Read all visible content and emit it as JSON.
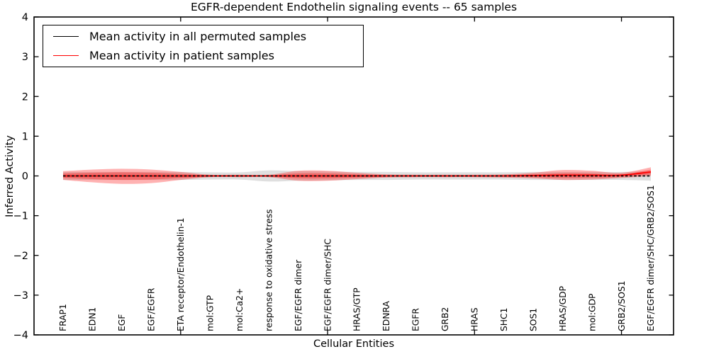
{
  "title": "EGFR-dependent Endothelin signaling events -- 65 samples",
  "chart_data": {
    "type": "area",
    "title": "EGFR-dependent Endothelin signaling events -- 65 samples",
    "xlabel": "Cellular Entities",
    "ylabel": "Inferred Activity",
    "ylim": [
      -4,
      4
    ],
    "grid": false,
    "legend_position": "upper left",
    "yticks": {
      "values": [
        4,
        3,
        2,
        1,
        0,
        -1,
        -2,
        -3,
        -4
      ],
      "labels": [
        "4",
        "3",
        "2",
        "1",
        "0",
        "−1",
        "−2",
        "−3",
        "−4"
      ]
    },
    "xtick_positions": [
      5,
      10,
      15,
      20
    ],
    "categories": [
      "FRAP1",
      "EDN1",
      "EGF",
      "EGF/EGFR",
      "ETA receptor/Endothelin-1",
      "mol:GTP",
      "mol:Ca2+",
      "response to oxidative stress",
      "EGF/EGFR dimer",
      "EGF/EGFR dimer/SHC",
      "HRAS/GTP",
      "EDNRA",
      "EGFR",
      "GRB2",
      "HRAS",
      "SHC1",
      "SOS1",
      "HRAS/GDP",
      "mol:GDP",
      "GRB2/SOS1",
      "EGF/EGFR dimer/SHC/GRB2/SOS1"
    ],
    "legend": [
      {
        "label": "Mean activity in all permuted samples",
        "color": "#000000"
      },
      {
        "label": "Mean activity in patient samples",
        "color": "#ff0000"
      }
    ],
    "series": [
      {
        "name": "Mean activity in all permuted samples",
        "color": "#000000",
        "dash": "3.5,2.6",
        "values": [
          0,
          0,
          0,
          0,
          0,
          0,
          0,
          0,
          0,
          0,
          0,
          0,
          0,
          0,
          0,
          0,
          0,
          0,
          0,
          0,
          0
        ]
      },
      {
        "name": "Mean activity in patient samples",
        "color": "#ff0000",
        "dash": "",
        "values": [
          0,
          0,
          0,
          0,
          0,
          0,
          0,
          0,
          0,
          0,
          0,
          0,
          0,
          0,
          0,
          0,
          0.01,
          0.02,
          0.02,
          0.02,
          0.1
        ]
      }
    ],
    "bands": [
      {
        "name": "permuted-envelope",
        "color": "#808080",
        "opacity": 0.25,
        "top": [
          0.1,
          0.1,
          0.1,
          0.1,
          0.1,
          0.09,
          0.09,
          0.14,
          0.12,
          0.11,
          0.1,
          0.1,
          0.09,
          0.09,
          0.09,
          0.09,
          0.1,
          0.1,
          0.1,
          0.1,
          0.12
        ],
        "bottom": [
          -0.1,
          -0.1,
          -0.1,
          -0.1,
          -0.1,
          -0.09,
          -0.09,
          -0.14,
          -0.12,
          -0.11,
          -0.1,
          -0.1,
          -0.09,
          -0.09,
          -0.09,
          -0.09,
          -0.1,
          -0.1,
          -0.1,
          -0.1,
          -0.12
        ]
      },
      {
        "name": "patient-envelope",
        "color": "#ff0000",
        "opacity": 0.3,
        "top": [
          0.12,
          0.16,
          0.18,
          0.16,
          0.1,
          0.03,
          0.03,
          0.03,
          0.13,
          0.13,
          0.08,
          0.04,
          0.03,
          0.03,
          0.03,
          0.04,
          0.08,
          0.15,
          0.13,
          0.08,
          0.22
        ],
        "bottom": [
          -0.1,
          -0.16,
          -0.2,
          -0.18,
          -0.1,
          -0.03,
          -0.03,
          -0.03,
          -0.12,
          -0.12,
          -0.08,
          -0.04,
          -0.03,
          -0.03,
          -0.03,
          -0.04,
          -0.06,
          -0.1,
          -0.09,
          -0.05,
          0.0
        ]
      },
      {
        "name": "patient-std",
        "color": "#ff0000",
        "opacity": 0.3,
        "top": [
          0.06,
          0.08,
          0.09,
          0.08,
          0.05,
          0.02,
          0.015,
          0.015,
          0.065,
          0.065,
          0.04,
          0.02,
          0.015,
          0.015,
          0.015,
          0.02,
          0.04,
          0.07,
          0.06,
          0.04,
          0.16
        ],
        "bottom": [
          -0.05,
          -0.08,
          -0.1,
          -0.09,
          -0.05,
          -0.02,
          -0.015,
          -0.015,
          -0.06,
          -0.06,
          -0.04,
          -0.02,
          -0.015,
          -0.015,
          -0.015,
          -0.02,
          -0.03,
          -0.05,
          -0.045,
          -0.025,
          0.04
        ]
      }
    ]
  }
}
